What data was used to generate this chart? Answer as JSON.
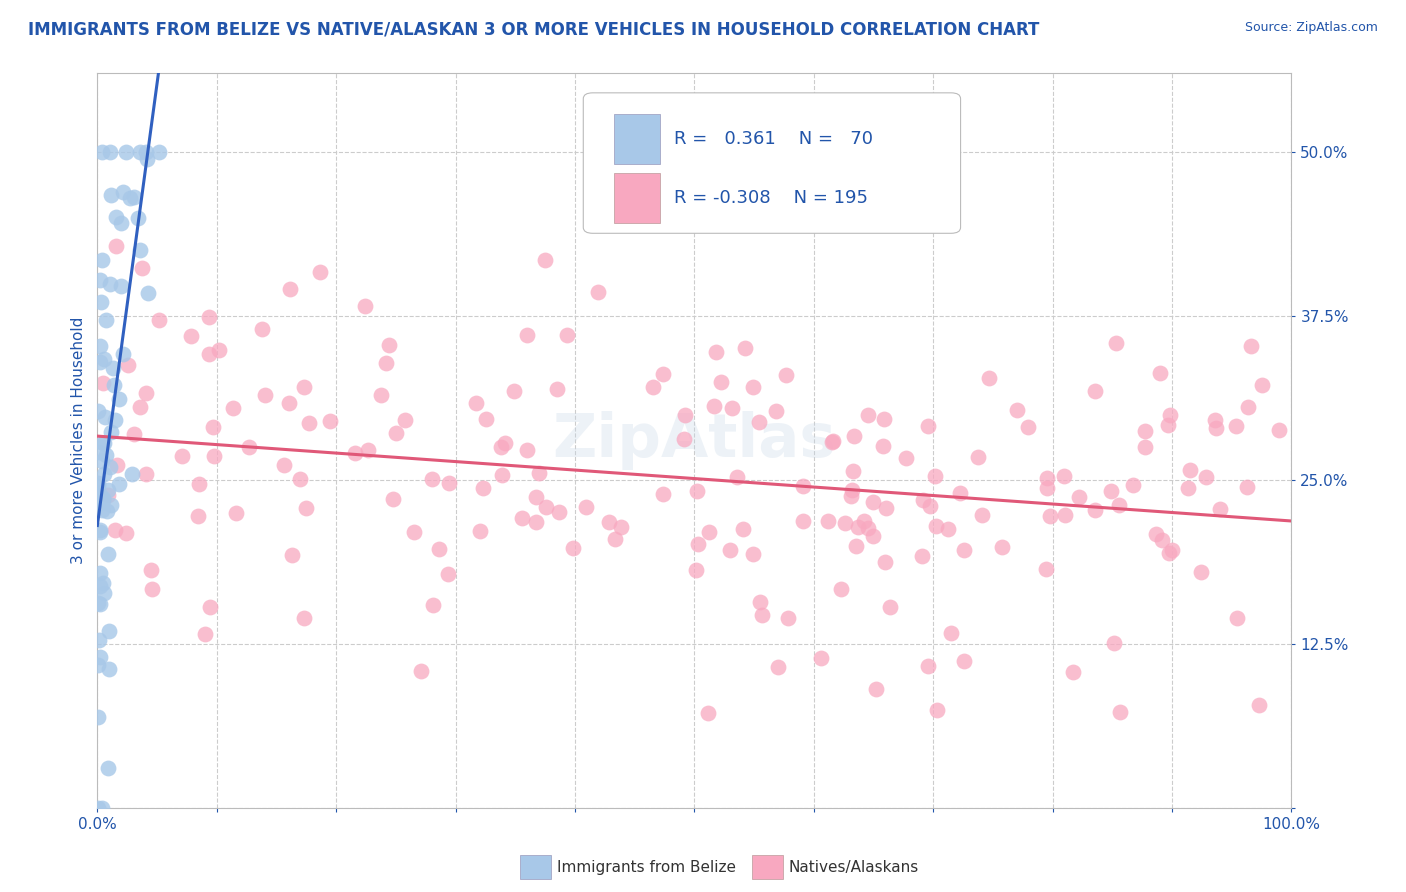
{
  "title": "IMMIGRANTS FROM BELIZE VS NATIVE/ALASKAN 3 OR MORE VEHICLES IN HOUSEHOLD CORRELATION CHART",
  "source": "Source: ZipAtlas.com",
  "ylabel": "3 or more Vehicles in Household",
  "legend_label1": "Immigrants from Belize",
  "legend_label2": "Natives/Alaskans",
  "r1": 0.361,
  "n1": 70,
  "r2": -0.308,
  "n2": 195,
  "color1": "#a8c8e8",
  "color2": "#f8a8c0",
  "trend_color1": "#3060c0",
  "trend_color2": "#e05878",
  "background": "#ffffff",
  "grid_color": "#cccccc",
  "title_color": "#2255aa",
  "axis_label_color": "#2255aa",
  "tick_label_color": "#2255aa",
  "source_color": "#2255aa",
  "bottom_label_color": "#333333",
  "xlim": [
    0.0,
    1.0
  ],
  "ylim": [
    0.0,
    0.56
  ],
  "xtick_positions": [
    0.0,
    0.1,
    0.2,
    0.3,
    0.4,
    0.5,
    0.6,
    0.7,
    0.8,
    0.9,
    1.0
  ],
  "ytick_positions": [
    0.0,
    0.125,
    0.25,
    0.375,
    0.5
  ],
  "ytick_labels": [
    "",
    "12.5%",
    "25.0%",
    "37.5%",
    "50.0%"
  ]
}
